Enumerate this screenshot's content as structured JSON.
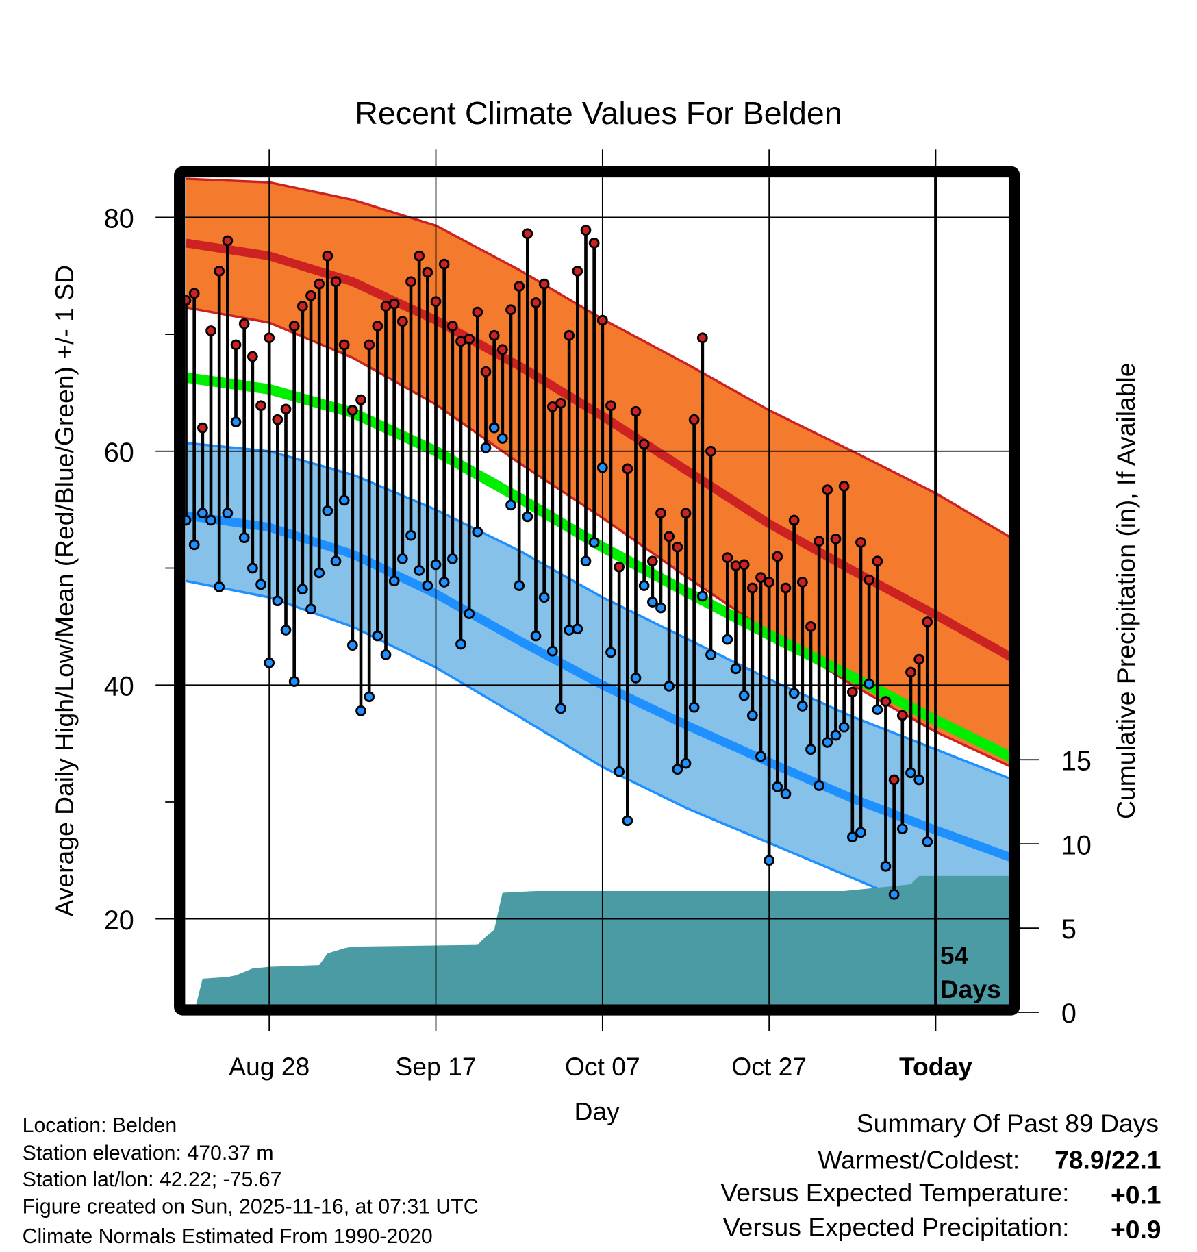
{
  "chart_data": {
    "type": "line",
    "title": "Recent Climate Values For Belden",
    "xlabel": "Day",
    "ylabel": "Average Daily High/Low/Mean (Red/Blue/Green) +/- 1 SD",
    "y2label": "Cumulative Precipitation (in), If Available",
    "ylim": [
      12.7,
      83.4
    ],
    "y_ticks": [
      80,
      60,
      40,
      20
    ],
    "y_minor_ticks": [
      70,
      50,
      30
    ],
    "y2lim": [
      0,
      15
    ],
    "y2_ticks": [
      0,
      5,
      10,
      15
    ],
    "x_ticks": [
      {
        "day": 10,
        "label": "Aug 28"
      },
      {
        "day": 30,
        "label": "Sep 17"
      },
      {
        "day": 50,
        "label": "Oct 07"
      },
      {
        "day": 70,
        "label": "Oct 27"
      },
      {
        "day": 90,
        "label": "Today"
      }
    ],
    "x_range_days": [
      0,
      99
    ],
    "today_day": 90,
    "today_annotation": [
      "54",
      "Days"
    ],
    "grid": true,
    "daily_high": [
      72.9,
      73.5,
      62.0,
      70.3,
      75.4,
      78.0,
      69.1,
      70.9,
      68.1,
      63.9,
      69.7,
      62.7,
      63.6,
      70.7,
      72.4,
      73.3,
      74.3,
      76.7,
      74.5,
      69.1,
      63.5,
      64.4,
      69.1,
      70.7,
      72.4,
      72.6,
      71.1,
      74.5,
      76.7,
      75.3,
      72.8,
      76.0,
      70.7,
      69.4,
      69.6,
      71.9,
      66.8,
      69.9,
      68.7,
      72.1,
      74.1,
      78.6,
      72.7,
      74.3,
      63.8,
      64.1,
      69.9,
      75.4,
      78.9,
      77.8,
      71.2,
      63.9,
      50.1,
      58.5,
      63.4,
      60.6,
      50.6,
      54.7,
      52.7,
      51.8,
      54.7,
      62.7,
      69.7,
      60.0,
      null,
      50.9,
      50.2,
      50.3,
      48.3,
      49.2,
      48.8,
      51.0,
      48.3,
      54.1,
      48.8,
      45.0,
      52.3,
      56.7,
      52.5,
      57.0,
      39.4,
      52.2,
      49.0,
      50.6,
      38.6,
      31.9,
      37.4,
      41.1,
      42.2,
      45.4
    ],
    "daily_low": [
      54.1,
      52.0,
      54.7,
      54.1,
      48.4,
      54.7,
      62.5,
      52.6,
      50.0,
      48.6,
      41.9,
      47.2,
      44.7,
      40.3,
      48.2,
      46.5,
      49.6,
      54.9,
      50.6,
      55.8,
      43.4,
      37.8,
      39.0,
      44.2,
      42.6,
      48.9,
      50.8,
      52.8,
      49.8,
      48.5,
      50.3,
      48.8,
      50.8,
      43.5,
      46.1,
      53.1,
      60.3,
      62.0,
      61.1,
      55.4,
      48.5,
      54.4,
      44.2,
      47.5,
      42.9,
      38.0,
      44.7,
      44.8,
      50.6,
      52.2,
      58.6,
      42.8,
      32.6,
      28.4,
      40.6,
      48.5,
      47.1,
      46.6,
      39.9,
      32.8,
      33.3,
      38.1,
      47.6,
      42.6,
      null,
      43.9,
      41.4,
      39.1,
      37.4,
      33.9,
      25.0,
      31.3,
      30.7,
      39.3,
      38.2,
      34.5,
      31.4,
      35.1,
      35.7,
      36.4,
      27.0,
      27.4,
      40.1,
      37.9,
      24.5,
      22.1,
      27.7,
      32.5,
      31.9,
      26.6
    ],
    "normals_every_10_days": {
      "day": [
        0,
        10,
        20,
        30,
        40,
        50,
        60,
        70,
        80,
        90,
        100
      ],
      "high_mean": [
        77.8,
        76.7,
        74.5,
        71.2,
        67.3,
        63.0,
        58.4,
        53.8,
        49.8,
        46.0,
        42.0
      ],
      "high_plus_sd": [
        83.3,
        83.0,
        81.5,
        79.3,
        75.5,
        71.3,
        67.5,
        63.5,
        60.0,
        56.4,
        52.2
      ],
      "high_minus_sd": [
        72.3,
        71.0,
        68.0,
        64.0,
        59.0,
        54.3,
        49.3,
        44.5,
        40.0,
        36.0,
        32.7
      ],
      "mean": [
        66.3,
        65.3,
        63.3,
        60.0,
        56.0,
        51.8,
        48.0,
        44.3,
        40.7,
        37.0,
        33.5
      ],
      "low_mean": [
        54.5,
        53.5,
        51.2,
        47.8,
        43.8,
        40.0,
        36.6,
        33.4,
        30.3,
        27.6,
        25.0
      ],
      "low_plus_sd": [
        60.7,
        60.0,
        58.0,
        55.0,
        51.5,
        47.5,
        44.0,
        40.5,
        37.3,
        34.5,
        31.7
      ],
      "low_minus_sd": [
        48.9,
        47.5,
        45.0,
        41.5,
        37.3,
        33.0,
        29.5,
        26.5,
        23.5,
        20.5,
        18.0
      ]
    },
    "cumulative_precip": {
      "day": [
        1,
        2,
        5,
        6,
        7,
        8,
        10,
        16,
        17,
        19,
        20,
        35,
        36,
        37,
        38,
        42,
        79,
        83,
        87,
        88,
        99
      ],
      "inches": [
        0,
        2.0,
        2.1,
        2.2,
        2.4,
        2.6,
        2.7,
        2.8,
        3.5,
        3.8,
        3.9,
        4.0,
        4.5,
        4.9,
        7.1,
        7.2,
        7.2,
        7.4,
        7.6,
        8.1,
        8.1
      ]
    },
    "colors": {
      "high_band": "#f47a2e",
      "high_line": "#cc2222",
      "low_band": "#85c1e9",
      "low_line": "#1e90ff",
      "mean_line": "#00ee00",
      "precip": "#4a9ba4"
    }
  },
  "info": {
    "location": "Location: Belden",
    "elevation": "Station elevation: 470.37 m",
    "latlon": "Station lat/lon: 42.22; -75.67",
    "created": "Figure created on Sun, 2025-11-16, at 07:31 UTC",
    "normals": "Climate Normals Estimated From 1990-2020"
  },
  "summary": {
    "title": "Summary Of Past 89 Days",
    "warm_cold_label": "Warmest/Coldest:",
    "warm_cold_value": "78.9/22.1",
    "temp_label": "Versus Expected Temperature:",
    "temp_value": "+0.1",
    "temp_color": "#cc2222",
    "precip_label": "Versus Expected Precipitation:",
    "precip_value": "+0.9",
    "precip_color": "#22cc22"
  }
}
